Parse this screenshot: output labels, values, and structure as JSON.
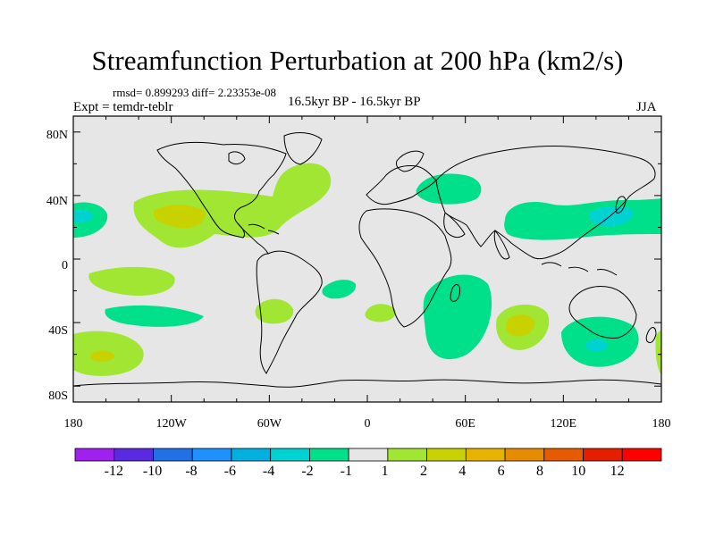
{
  "title": "Streamfunction Perturbation at 200 hPa (km2/s)",
  "stats": "rmsd= 0.899293 diff= 2.23353e-08",
  "left_label": "Expt = temdr-teblr",
  "center_label": "16.5kyr BP - 16.5kyr BP",
  "right_label": "JJA",
  "map": {
    "lat_labels": [
      "80N",
      "40N",
      "0",
      "40S",
      "80S"
    ],
    "lon_labels": [
      "180",
      "120W",
      "60W",
      "0",
      "60E",
      "120E",
      "180"
    ],
    "background_color": "#e6e6e6"
  },
  "colorbar": {
    "labels": [
      "-12",
      "-10",
      "-8",
      "-6",
      "-4",
      "-2",
      "-1",
      "1",
      "2",
      "4",
      "6",
      "8",
      "10",
      "12"
    ],
    "colors": [
      "#a020f0",
      "#5a2ae0",
      "#2070e6",
      "#1e90ff",
      "#00b0e0",
      "#00d2d2",
      "#00e08a",
      "#e6e6e6",
      "#a0e632",
      "#c8d200",
      "#e6b400",
      "#e68c00",
      "#e65a00",
      "#e61e00",
      "#ff0000"
    ]
  },
  "fields": [
    {
      "sign": "positive",
      "level": "1-2",
      "region": "subtropical North Pacific to Gulf of Mexico"
    },
    {
      "sign": "positive",
      "level": "2-4",
      "region": "eastern North Pacific core"
    },
    {
      "sign": "positive",
      "level": "1-2",
      "region": "North Atlantic"
    },
    {
      "sign": "negative",
      "level": "-1 to -2",
      "region": "Europe"
    },
    {
      "sign": "negative",
      "level": "-1 to -2",
      "region": "East Asia / western North Pacific"
    },
    {
      "sign": "negative",
      "level": "-2 to -4",
      "region": "Japan core"
    },
    {
      "sign": "negative",
      "level": "-1 to -2",
      "region": "western North Pacific edge"
    },
    {
      "sign": "positive",
      "level": "1-2",
      "region": "South Pacific band"
    },
    {
      "sign": "positive",
      "level": "2-4",
      "region": "South Pacific near 50S"
    },
    {
      "sign": "positive",
      "level": "1-2",
      "region": "southern South America"
    },
    {
      "sign": "negative",
      "level": "-1 to -2",
      "region": "South Atlantic"
    },
    {
      "sign": "positive",
      "level": "1-2",
      "region": "off South Africa"
    },
    {
      "sign": "negative",
      "level": "-1 to -2",
      "region": "southwest Indian Ocean"
    },
    {
      "sign": "positive",
      "level": "2-4",
      "region": "southern Indian Ocean"
    },
    {
      "sign": "negative",
      "level": "-2 to -4",
      "region": "south of Australia"
    },
    {
      "sign": "positive",
      "level": "1-2",
      "region": "south of New Zealand"
    }
  ]
}
